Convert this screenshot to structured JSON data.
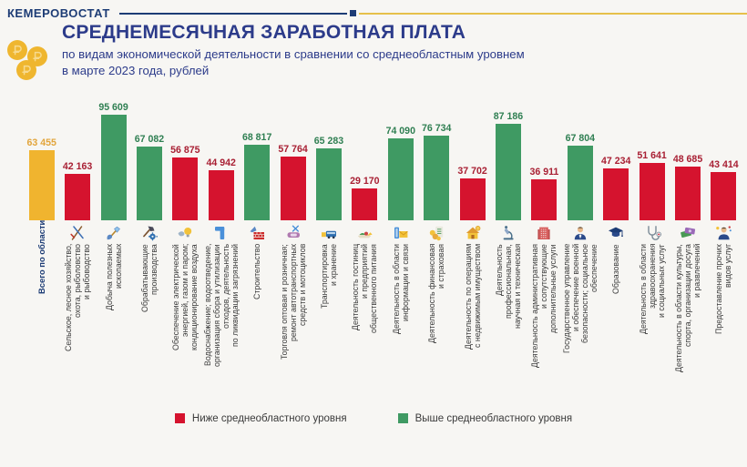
{
  "header": {
    "brand": "КЕМЕРОВОСТАТ",
    "title": "СРЕДНЕМЕСЯЧНАЯ ЗАРАБОТНАЯ ПЛАТА",
    "subtitle_line1": "по видам экономической деятельности в сравнении со среднеобластным уровнем",
    "subtitle_line2": "в марте 2023 года, рублей",
    "logo_icon": "ruble-coins-icon"
  },
  "colors": {
    "total_bar": "#f0b42f",
    "total_label": "#e2a53c",
    "above_bar": "#3f9a63",
    "above_label": "#2f7f52",
    "below_bar": "#d5132e",
    "below_label": "#a81f33",
    "navy": "#1d3c75",
    "title_navy": "#2c3b8a",
    "gold_rule": "#e6c04a",
    "background": "#f7f6f3"
  },
  "legend": [
    {
      "label": "Ниже среднеобластного уровня",
      "color": "#d5132e",
      "swatch_icon": "below-level-swatch"
    },
    {
      "label": "Выше среднеобластного уровня",
      "color": "#3f9a63",
      "swatch_icon": "above-level-swatch"
    }
  ],
  "chart_data": {
    "type": "bar",
    "title": "СРЕДНЕМЕСЯЧНАЯ ЗАРАБОТНАЯ ПЛАТА",
    "subtitle": "по видам экономической деятельности в сравнении со среднеобластным уровнем в марте 2023 года, рублей",
    "unit": "рублей",
    "region_average": 63455,
    "ylim": [
      0,
      100000
    ],
    "grid": false,
    "legend_position": "bottom",
    "bars": [
      {
        "category": "Всего по области",
        "value": 63455,
        "status": "total",
        "icon": null
      },
      {
        "category": "Сельское, лесное хозяйство,\nохота, рыболовство\nи рыбоводство",
        "value": 42163,
        "status": "below",
        "icon": "agriculture-icon"
      },
      {
        "category": "Добыча полезных\nископаемых",
        "value": 95609,
        "status": "above",
        "icon": "mining-icon"
      },
      {
        "category": "Обрабатывающие\nпроизводства",
        "value": 67082,
        "status": "above",
        "icon": "manufacturing-icon"
      },
      {
        "category": "Обеспечение электрической\nэнергией, газом и паром;\nкондиционирование воздуха",
        "value": 56875,
        "status": "below",
        "icon": "energy-icon"
      },
      {
        "category": "Водоснабжение; водоотведение,\nорганизация сбора и утилизации\nотходов, деятельность\nпо ликвидации загрязнений",
        "value": 44942,
        "status": "below",
        "icon": "water-icon"
      },
      {
        "category": "Строительство",
        "value": 68817,
        "status": "above",
        "icon": "construction-icon"
      },
      {
        "category": "Торговля оптовая и розничная;\nремонт автотранспортных\nсредств и мотоциклов",
        "value": 57764,
        "status": "below",
        "icon": "trade-icon"
      },
      {
        "category": "Транспортировка\nи хранение",
        "value": 65283,
        "status": "above",
        "icon": "transport-icon"
      },
      {
        "category": "Деятельность гостиниц\nи предприятий\nобщественного питания",
        "value": 29170,
        "status": "below",
        "icon": "hotel-icon"
      },
      {
        "category": "Деятельность в области\nинформации и связи",
        "value": 74090,
        "status": "above",
        "icon": "information-icon"
      },
      {
        "category": "Деятельность финансовая\nи страховая",
        "value": 76734,
        "status": "above",
        "icon": "finance-icon"
      },
      {
        "category": "Деятельность по операциям\nс недвижимым имуществом",
        "value": 37702,
        "status": "below",
        "icon": "realestate-icon"
      },
      {
        "category": "Деятельность\nпрофессиональная,\nнаучная и техническая",
        "value": 87186,
        "status": "above",
        "icon": "science-icon"
      },
      {
        "category": "Деятельность административная\nи сопутствующие\nдополнительные услуги",
        "value": 36911,
        "status": "below",
        "icon": "administrative-icon"
      },
      {
        "category": "Государственное управление\nи обеспечение военной\nбезопасности; социальное\nобеспечение",
        "value": 67804,
        "status": "above",
        "icon": "government-icon"
      },
      {
        "category": "Образование",
        "value": 47234,
        "status": "below",
        "icon": "education-icon"
      },
      {
        "category": "Деятельность в области\nздравоохранения\nи социальных услуг",
        "value": 51641,
        "status": "below",
        "icon": "health-icon"
      },
      {
        "category": "Деятельность в области культуры,\nспорта, организации досуга\nи развлечений",
        "value": 48685,
        "status": "below",
        "icon": "culture-icon"
      },
      {
        "category": "Предоставление прочих\nвидов услуг",
        "value": 43414,
        "status": "below",
        "icon": "services-icon"
      }
    ]
  }
}
